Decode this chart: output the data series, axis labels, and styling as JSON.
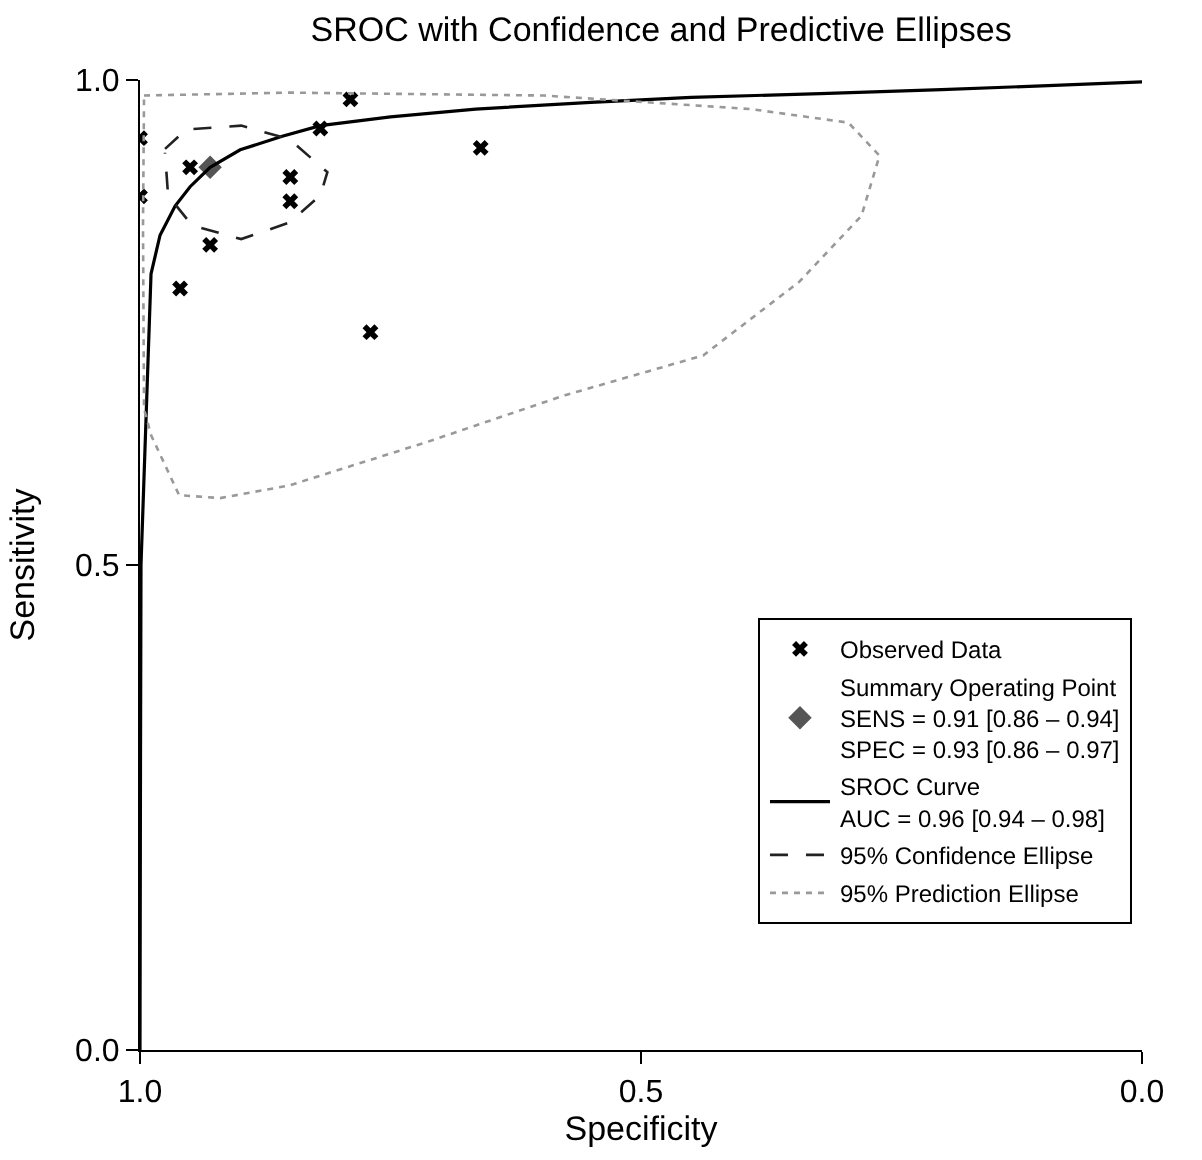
{
  "chart_data": {
    "type": "scatter",
    "title": "SROC with Confidence and Predictive Ellipses",
    "xlabel": "Specificity",
    "ylabel": "Sensitivity",
    "xlim": [
      1.0,
      0.0
    ],
    "ylim": [
      0.0,
      1.0
    ],
    "xticks": [
      {
        "value": 1.0,
        "label": "1.0"
      },
      {
        "value": 0.5,
        "label": "0.5"
      },
      {
        "value": 0.0,
        "label": "0.0"
      }
    ],
    "yticks": [
      {
        "value": 0.0,
        "label": "0.0"
      },
      {
        "value": 0.5,
        "label": "0.5"
      },
      {
        "value": 1.0,
        "label": "1.0"
      }
    ],
    "legend": "bottom right",
    "series": [
      {
        "name": "Observed Data",
        "type": "scatter",
        "marker": "cross",
        "color": "#000000",
        "x": [
          0.95,
          0.85,
          0.85,
          0.93,
          0.96,
          0.82,
          0.79,
          0.66,
          0.77,
          1.0,
          1.0
        ],
        "values": [
          0.91,
          0.9,
          0.875,
          0.83,
          0.785,
          0.95,
          0.98,
          0.93,
          0.74,
          0.94,
          0.88
        ]
      },
      {
        "name": "Summary Operating Point\nSENS = 0.91 [0.86 – 0.94]\nSPEC = 0.93 [0.86 – 0.97]",
        "type": "scatter",
        "marker": "diamond",
        "color": "#555555",
        "x": [
          0.93
        ],
        "values": [
          0.91
        ]
      },
      {
        "name": "SROC Curve\nAUC = 0.96 [0.94 – 0.98]",
        "type": "line",
        "line_style": "solid",
        "color": "#000000",
        "x": [
          1.0,
          0.9995,
          0.999,
          0.995,
          0.989,
          0.98,
          0.965,
          0.95,
          0.93,
          0.9,
          0.858,
          0.82,
          0.75,
          0.665,
          0.55,
          0.45,
          0.321,
          0.2,
          0.1,
          0.0
        ],
        "values": [
          0.0,
          0.3,
          0.5,
          0.62,
          0.8,
          0.84,
          0.87,
          0.89,
          0.91,
          0.928,
          0.942,
          0.953,
          0.962,
          0.97,
          0.977,
          0.982,
          0.986,
          0.99,
          0.994,
          0.998
        ]
      },
      {
        "name": "95% Confidence Ellipse",
        "type": "line",
        "line_style": "dashed",
        "color": "#222222",
        "x": [
          0.975,
          0.954,
          0.899,
          0.851,
          0.813,
          0.82,
          0.851,
          0.899,
          0.948,
          0.972,
          0.975
        ],
        "values": [
          0.929,
          0.949,
          0.953,
          0.939,
          0.905,
          0.881,
          0.853,
          0.836,
          0.85,
          0.881,
          0.925
        ]
      },
      {
        "name": "95% Prediction Ellipse",
        "type": "line",
        "line_style": "dotted",
        "color": "#999999",
        "x": [
          0.996,
          0.851,
          0.597,
          0.39,
          0.293,
          0.262,
          0.28,
          0.342,
          0.438,
          0.576,
          0.713,
          0.851,
          0.92,
          0.961,
          0.989,
          0.996,
          0.997,
          0.996
        ],
        "values": [
          0.984,
          0.987,
          0.984,
          0.97,
          0.956,
          0.922,
          0.86,
          0.792,
          0.716,
          0.675,
          0.627,
          0.582,
          0.569,
          0.572,
          0.634,
          0.661,
          0.85,
          0.98
        ]
      }
    ]
  }
}
